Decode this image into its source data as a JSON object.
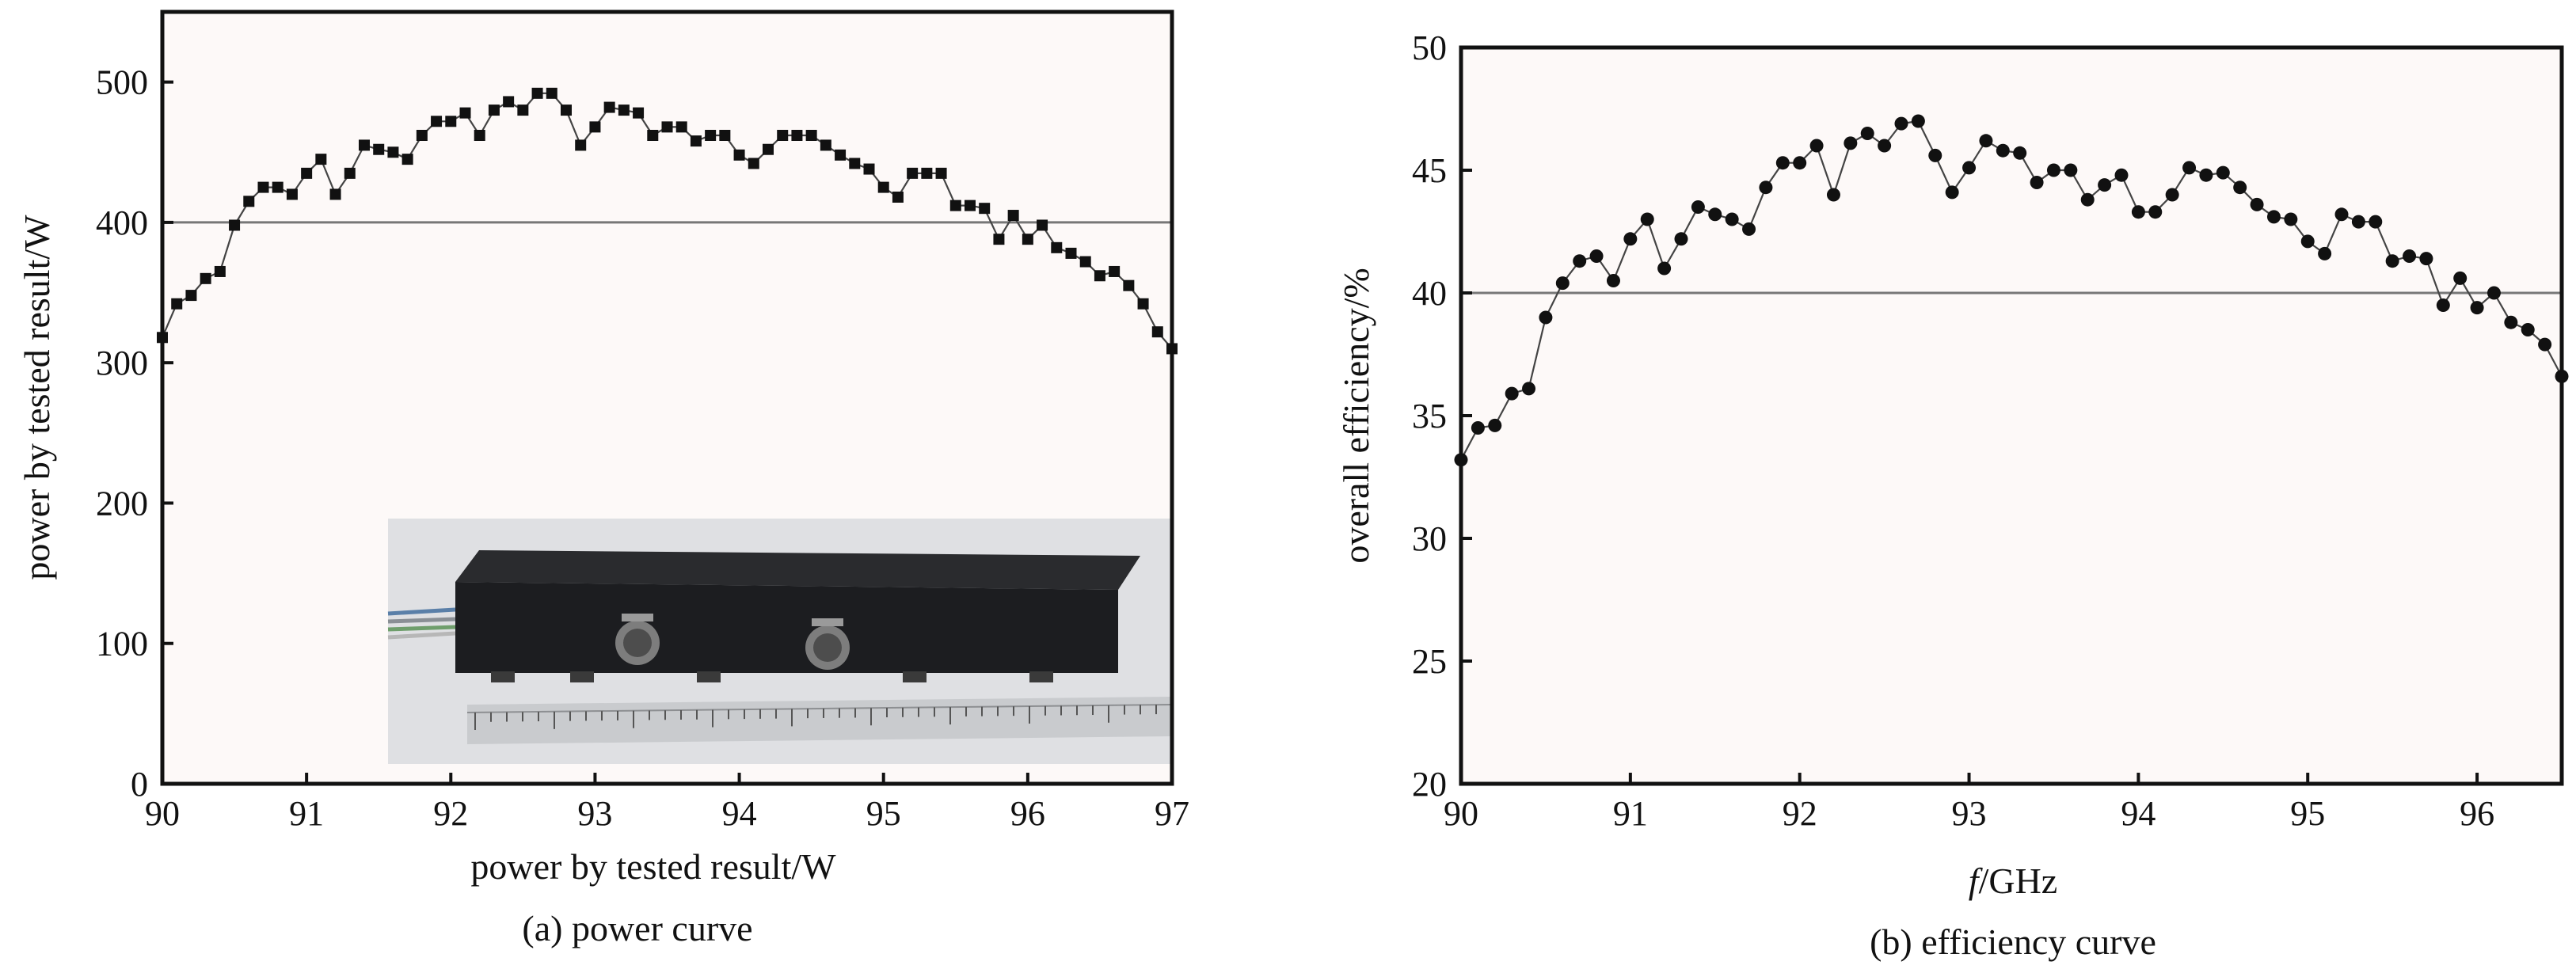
{
  "chart_data": [
    {
      "type": "line",
      "marker": "square",
      "caption": "(a) power curve",
      "xlabel": "power by tested result/W",
      "ylabel": "power by tested result/W",
      "xlim": [
        90,
        97
      ],
      "ylim": [
        0,
        550
      ],
      "xticks": [
        90,
        91,
        92,
        93,
        94,
        95,
        96,
        97
      ],
      "yticks": [
        0,
        100,
        200,
        300,
        400,
        500
      ],
      "reference_line_y": 400,
      "inset_photo": "amplifier-module-with-ruler",
      "series": [
        {
          "x": [
            90.0,
            90.1,
            90.2,
            90.3,
            90.4,
            90.5,
            90.6,
            90.7,
            90.8,
            90.9,
            91.0,
            91.1,
            91.2,
            91.3,
            91.4,
            91.5,
            91.6,
            91.7,
            91.8,
            91.9,
            92.0,
            92.1,
            92.2,
            92.3,
            92.4,
            92.5,
            92.6,
            92.7,
            92.8,
            92.9,
            93.0,
            93.1,
            93.2,
            93.3,
            93.4,
            93.5,
            93.6,
            93.7,
            93.8,
            93.9,
            94.0,
            94.1,
            94.2,
            94.3,
            94.4,
            94.5,
            94.6,
            94.7,
            94.8,
            94.9,
            95.0,
            95.1,
            95.2,
            95.3,
            95.4,
            95.5,
            95.6,
            95.7,
            95.8,
            95.9,
            96.0,
            96.1,
            96.2,
            96.3,
            96.4,
            96.5,
            96.6,
            96.7,
            96.8,
            96.9,
            97.0
          ],
          "y": [
            318,
            342,
            348,
            360,
            365,
            398,
            415,
            425,
            425,
            420,
            435,
            445,
            420,
            435,
            455,
            452,
            450,
            445,
            462,
            472,
            472,
            478,
            462,
            480,
            486,
            480,
            492,
            492,
            480,
            455,
            468,
            482,
            480,
            478,
            462,
            468,
            468,
            458,
            462,
            462,
            448,
            442,
            452,
            462,
            462,
            462,
            455,
            448,
            442,
            438,
            425,
            418,
            435,
            435,
            435,
            412,
            412,
            410,
            388,
            405,
            388,
            398,
            382,
            378,
            372,
            362,
            365,
            355,
            342,
            322,
            310
          ]
        }
      ]
    },
    {
      "type": "line",
      "marker": "circle",
      "caption": "(b) efficiency curve",
      "xlabel_italic": "f",
      "xlabel_rest": "/GHz",
      "ylabel": "overall efficiency/%",
      "xlim": [
        90,
        96.5
      ],
      "ylim": [
        20,
        50
      ],
      "xticks": [
        90,
        91,
        92,
        93,
        94,
        95,
        96
      ],
      "yticks": [
        20,
        25,
        30,
        35,
        40,
        45,
        50
      ],
      "reference_line_y": 40,
      "series": [
        {
          "x": [
            90.0,
            90.1,
            90.2,
            90.3,
            90.4,
            90.5,
            90.6,
            90.7,
            90.8,
            90.9,
            91.0,
            91.1,
            91.2,
            91.3,
            91.4,
            91.5,
            91.6,
            91.7,
            91.8,
            91.9,
            92.0,
            92.1,
            92.2,
            92.3,
            92.4,
            92.5,
            92.6,
            92.7,
            92.8,
            92.9,
            93.0,
            93.1,
            93.2,
            93.3,
            93.4,
            93.5,
            93.6,
            93.7,
            93.8,
            93.9,
            94.0,
            94.1,
            94.2,
            94.3,
            94.4,
            94.5,
            94.6,
            94.7,
            94.8,
            94.9,
            95.0,
            95.1,
            95.2,
            95.3,
            95.4,
            95.5,
            95.6,
            95.7,
            95.8,
            95.9,
            96.0,
            96.1,
            96.2,
            96.3,
            96.4,
            96.5
          ],
          "y": [
            33.2,
            34.5,
            34.6,
            35.9,
            36.1,
            39.0,
            40.4,
            41.3,
            41.5,
            40.5,
            42.2,
            43.0,
            41.0,
            42.2,
            43.5,
            43.2,
            43.0,
            42.6,
            44.3,
            45.3,
            45.3,
            46.0,
            44.0,
            46.1,
            46.5,
            46.0,
            46.9,
            47.0,
            45.6,
            44.1,
            45.1,
            46.2,
            45.8,
            45.7,
            44.5,
            45.0,
            45.0,
            43.8,
            44.4,
            44.8,
            43.3,
            43.3,
            44.0,
            45.1,
            44.8,
            44.9,
            44.3,
            43.6,
            43.1,
            43.0,
            42.1,
            41.6,
            43.2,
            42.9,
            42.9,
            41.3,
            41.5,
            41.4,
            39.5,
            40.6,
            39.4,
            40.0,
            38.8,
            38.5,
            37.9,
            36.6
          ]
        }
      ]
    }
  ]
}
